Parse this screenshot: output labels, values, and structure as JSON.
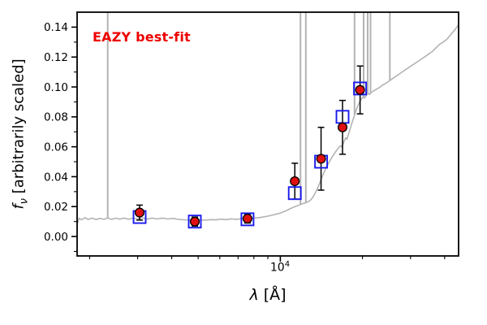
{
  "chart_data": {
    "type": "line+scatter",
    "annotation": "EAZY best-fit",
    "annotation_color": "#ee0000",
    "xlabel_parts": {
      "symbol": "λ",
      "rest": " [Å]"
    },
    "ylabel_parts": {
      "symbol": "f",
      "subscript": "ν",
      "rest": " [arbitrarily scaled]"
    },
    "xscale": "log",
    "xlim": [
      1800,
      45000
    ],
    "ylim": [
      -0.013,
      0.15
    ],
    "yticks": {
      "values": [
        0.0,
        0.02,
        0.04,
        0.06,
        0.08,
        0.1,
        0.12,
        0.14
      ],
      "labels": [
        "0.00",
        "0.02",
        "0.04",
        "0.06",
        "0.08",
        "0.10",
        "0.12",
        "0.14"
      ],
      "minor": [
        -0.01,
        0.01,
        0.03,
        0.05,
        0.07,
        0.09,
        0.11,
        0.13
      ]
    },
    "xtick_major": {
      "value": 10000,
      "label_base": "10",
      "label_exp": "4"
    },
    "xtick_minor_values": [
      2000,
      3000,
      4000,
      5000,
      6000,
      7000,
      8000,
      9000,
      20000,
      30000,
      40000
    ],
    "colors": {
      "spectrum": "#b3b3b3",
      "model_marker": "#1a1aee",
      "observed_marker": "#e01010",
      "marker_edge": "#000000",
      "errorbar": "#000000",
      "frame": "#000000"
    },
    "series": {
      "model_spectrum": {
        "name": "EAZY best-fit template spectrum",
        "points": [
          [
            1800,
            0.008
          ],
          [
            1830,
            0.0122
          ],
          [
            1870,
            0.0112
          ],
          [
            1920,
            0.0126
          ],
          [
            1980,
            0.0114
          ],
          [
            2040,
            0.0123
          ],
          [
            2110,
            0.0113
          ],
          [
            2180,
            0.0121
          ],
          [
            2260,
            0.0115
          ],
          [
            2330,
            0.0124
          ],
          [
            2410,
            0.0114
          ],
          [
            2490,
            0.0123
          ],
          [
            2580,
            0.0116
          ],
          [
            2680,
            0.0124
          ],
          [
            2780,
            0.0115
          ],
          [
            2890,
            0.0123
          ],
          [
            3000,
            0.0117
          ],
          [
            3120,
            0.0125
          ],
          [
            3250,
            0.0116
          ],
          [
            3390,
            0.0123
          ],
          [
            3540,
            0.0117
          ],
          [
            3700,
            0.0123
          ],
          [
            3870,
            0.0117
          ],
          [
            4050,
            0.0121
          ],
          [
            4240,
            0.0114
          ],
          [
            4440,
            0.0112
          ],
          [
            4650,
            0.0109
          ],
          [
            4860,
            0.0107
          ],
          [
            5080,
            0.0111
          ],
          [
            5310,
            0.0109
          ],
          [
            5550,
            0.0113
          ],
          [
            5800,
            0.0111
          ],
          [
            6060,
            0.0116
          ],
          [
            6330,
            0.0113
          ],
          [
            6620,
            0.0118
          ],
          [
            6920,
            0.0115
          ],
          [
            7230,
            0.012
          ],
          [
            7580,
            0.0118
          ],
          [
            7920,
            0.0122
          ],
          [
            8280,
            0.0125
          ],
          [
            8650,
            0.013
          ],
          [
            9040,
            0.0137
          ],
          [
            9450,
            0.0145
          ],
          [
            9880,
            0.0154
          ],
          [
            10150,
            0.0161
          ],
          [
            10430,
            0.017
          ],
          [
            10720,
            0.018
          ],
          [
            11020,
            0.0191
          ],
          [
            11330,
            0.02
          ],
          [
            11640,
            0.0208
          ],
          [
            11900,
            0.0216
          ],
          [
            12150,
            0.0221
          ],
          [
            12400,
            0.0226
          ],
          [
            12650,
            0.0233
          ],
          [
            12900,
            0.0243
          ],
          [
            13150,
            0.0262
          ],
          [
            13400,
            0.0288
          ],
          [
            13650,
            0.0318
          ],
          [
            13900,
            0.0352
          ],
          [
            14150,
            0.0388
          ],
          [
            14400,
            0.0422
          ],
          [
            14650,
            0.0452
          ],
          [
            14900,
            0.0478
          ],
          [
            15150,
            0.0502
          ],
          [
            15400,
            0.0524
          ],
          [
            15650,
            0.0545
          ],
          [
            15900,
            0.0564
          ],
          [
            16150,
            0.0581
          ],
          [
            16400,
            0.0596
          ],
          [
            16650,
            0.0608
          ],
          [
            16800,
            0.0598
          ],
          [
            16950,
            0.0615
          ],
          [
            17150,
            0.0638
          ],
          [
            17350,
            0.066
          ],
          [
            17550,
            0.065
          ],
          [
            17750,
            0.0682
          ],
          [
            17950,
            0.071
          ],
          [
            18150,
            0.0738
          ],
          [
            18350,
            0.0765
          ],
          [
            18550,
            0.0792
          ],
          [
            18750,
            0.0818
          ],
          [
            18950,
            0.0843
          ],
          [
            19150,
            0.0865
          ],
          [
            19350,
            0.0885
          ],
          [
            19550,
            0.0902
          ],
          [
            19750,
            0.0916
          ],
          [
            19950,
            0.0927
          ],
          [
            20150,
            0.0934
          ],
          [
            20350,
            0.0925
          ],
          [
            20550,
            0.0938
          ],
          [
            20750,
            0.0948
          ],
          [
            21000,
            0.0956
          ],
          [
            21250,
            0.095
          ],
          [
            21500,
            0.0962
          ],
          [
            21800,
            0.097
          ],
          [
            22100,
            0.0977
          ],
          [
            22450,
            0.0984
          ],
          [
            22800,
            0.0991
          ],
          [
            23200,
            0.0999
          ],
          [
            23650,
            0.1012
          ],
          [
            24100,
            0.1019
          ],
          [
            24600,
            0.103
          ],
          [
            25100,
            0.1041
          ],
          [
            25650,
            0.1053
          ],
          [
            26200,
            0.1065
          ],
          [
            26800,
            0.1077
          ],
          [
            27450,
            0.109
          ],
          [
            28100,
            0.1103
          ],
          [
            28800,
            0.1116
          ],
          [
            29500,
            0.1129
          ],
          [
            30300,
            0.1143
          ],
          [
            31100,
            0.1157
          ],
          [
            32000,
            0.1172
          ],
          [
            32900,
            0.1187
          ],
          [
            33900,
            0.1203
          ],
          [
            34900,
            0.1219
          ],
          [
            36000,
            0.1236
          ],
          [
            37100,
            0.126
          ],
          [
            38300,
            0.1285
          ],
          [
            39500,
            0.13
          ],
          [
            40800,
            0.132
          ],
          [
            42100,
            0.135
          ],
          [
            43500,
            0.138
          ],
          [
            45000,
            0.1415
          ]
        ]
      },
      "emission_lines": {
        "name": "emission-line spikes",
        "wavelengths": [
          2330,
          11850,
          12400,
          18700,
          20200,
          20900,
          21400,
          25200
        ],
        "base_flux": [
          0.0124,
          0.0212,
          0.0226,
          0.0815,
          0.0932,
          0.0952,
          0.096,
          0.1042
        ]
      },
      "model_photometry": {
        "name": "template photometry",
        "marker": "open-square",
        "x": [
          3050,
          4860,
          7580,
          11300,
          14100,
          16900,
          19600
        ],
        "y": [
          0.013,
          0.01,
          0.0115,
          0.029,
          0.05,
          0.08,
          0.099
        ]
      },
      "observed_photometry": {
        "name": "observed photometry",
        "marker": "filled-circle",
        "x": [
          3050,
          4860,
          7580,
          11300,
          14100,
          16900,
          19600
        ],
        "y": [
          0.016,
          0.01,
          0.012,
          0.037,
          0.052,
          0.073,
          0.098
        ],
        "yerr": [
          0.005,
          0.003,
          0.003,
          0.012,
          0.021,
          0.018,
          0.016
        ]
      }
    }
  }
}
